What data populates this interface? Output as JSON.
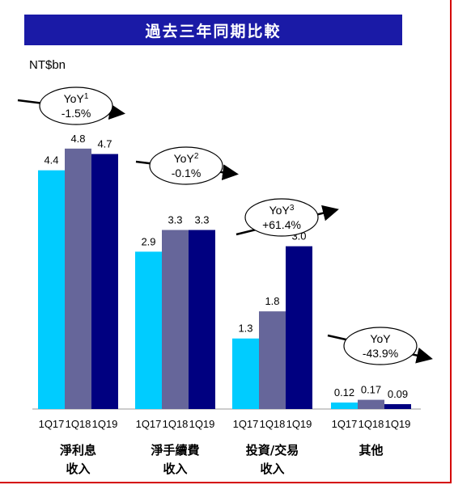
{
  "header": {
    "title": "過去三年同期比較"
  },
  "chart_data": {
    "type": "bar",
    "unit_label": "NT$bn",
    "series_colors": [
      "#00ccff",
      "#66669a",
      "#000080"
    ],
    "groups": [
      {
        "label_line1": "淨利息",
        "label_line2": "收入",
        "x": [
          "1Q17",
          "1Q18",
          "1Q19"
        ],
        "values": [
          4.4,
          4.8,
          4.7
        ],
        "value_labels": [
          "4.4",
          "4.8",
          "4.7"
        ],
        "yoy": {
          "label": "YoY",
          "sup": "1",
          "value": "-1.5%"
        }
      },
      {
        "label_line1": "淨手續費",
        "label_line2": "收入",
        "x": [
          "1Q17",
          "1Q18",
          "1Q19"
        ],
        "values": [
          2.9,
          3.3,
          3.3
        ],
        "value_labels": [
          "2.9",
          "3.3",
          "3.3"
        ],
        "yoy": {
          "label": "YoY",
          "sup": "2",
          "value": "-0.1%"
        }
      },
      {
        "label_line1": "投資/交易",
        "label_line2": "收入",
        "x": [
          "1Q17",
          "1Q18",
          "1Q19"
        ],
        "values": [
          1.3,
          1.8,
          3.0
        ],
        "value_labels": [
          "1.3",
          "1.8",
          "3.0"
        ],
        "yoy": {
          "label": "YoY",
          "sup": "3",
          "value": "+61.4%"
        }
      },
      {
        "label_line1": "其他",
        "label_line2": "",
        "x": [
          "1Q17",
          "1Q18",
          "1Q19"
        ],
        "values": [
          0.12,
          0.17,
          0.09
        ],
        "value_labels": [
          "0.12",
          "0.17",
          "0.09"
        ],
        "yoy": {
          "label": "YoY",
          "sup": "",
          "value": "-43.9%"
        }
      }
    ]
  }
}
